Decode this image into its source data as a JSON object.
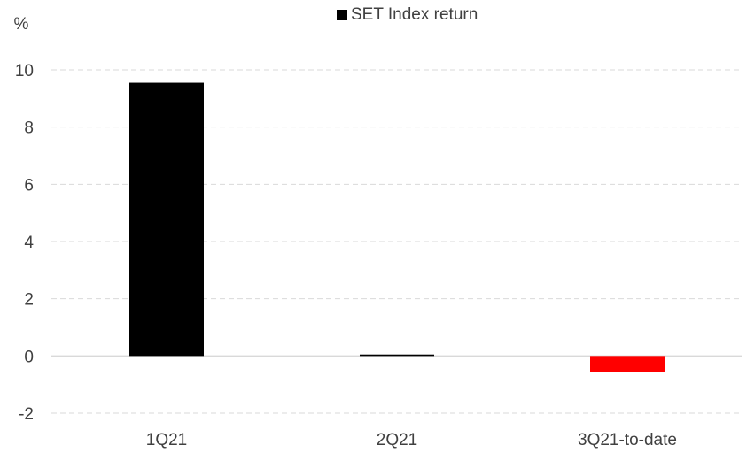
{
  "chart_data": {
    "type": "bar",
    "categories": [
      "1Q21",
      "2Q21",
      "3Q21-to-date"
    ],
    "series": [
      {
        "name": "SET Index return",
        "values": [
          9.55,
          0.05,
          -0.55
        ],
        "point_colors": [
          "#000000",
          "#000000",
          "#ff0000"
        ]
      }
    ],
    "unit_label": "%",
    "ylim": [
      -2,
      10
    ],
    "yticks": [
      -2,
      0,
      2,
      4,
      6,
      8,
      10
    ],
    "grid": true,
    "legend_position": "top-center",
    "colors": {
      "positive": "#000000",
      "negative": "#ff0000",
      "grid": "#d9d9d9",
      "zero_line": "#d9d9d9",
      "text": "#404040"
    }
  }
}
